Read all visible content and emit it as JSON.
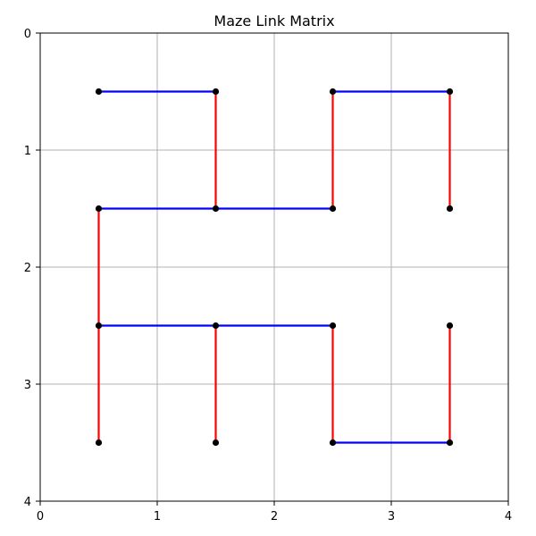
{
  "chart_data": {
    "type": "scatter",
    "title": "Maze Link Matrix",
    "xlabel": "",
    "ylabel": "",
    "xlim": [
      0,
      4
    ],
    "ylim": [
      4,
      0
    ],
    "y_inverted": true,
    "grid": true,
    "x_ticks": [
      "0",
      "1",
      "2",
      "3",
      "4"
    ],
    "y_ticks": [
      "0",
      "1",
      "2",
      "3",
      "4"
    ],
    "colors": {
      "horizontal_link": "#0000ff",
      "vertical_link": "#ff0000",
      "node": "#000000",
      "grid": "#b0b0b0"
    },
    "nodes": [
      {
        "x": 0.5,
        "y": 0.5
      },
      {
        "x": 1.5,
        "y": 0.5
      },
      {
        "x": 2.5,
        "y": 0.5
      },
      {
        "x": 3.5,
        "y": 0.5
      },
      {
        "x": 0.5,
        "y": 1.5
      },
      {
        "x": 1.5,
        "y": 1.5
      },
      {
        "x": 2.5,
        "y": 1.5
      },
      {
        "x": 3.5,
        "y": 1.5
      },
      {
        "x": 0.5,
        "y": 2.5
      },
      {
        "x": 1.5,
        "y": 2.5
      },
      {
        "x": 2.5,
        "y": 2.5
      },
      {
        "x": 3.5,
        "y": 2.5
      },
      {
        "x": 0.5,
        "y": 3.5
      },
      {
        "x": 1.5,
        "y": 3.5
      },
      {
        "x": 2.5,
        "y": 3.5
      },
      {
        "x": 3.5,
        "y": 3.5
      }
    ],
    "links": [
      {
        "orientation": "horizontal",
        "x1": 0.5,
        "y1": 0.5,
        "x2": 1.5,
        "y2": 0.5
      },
      {
        "orientation": "horizontal",
        "x1": 2.5,
        "y1": 0.5,
        "x2": 3.5,
        "y2": 0.5
      },
      {
        "orientation": "horizontal",
        "x1": 0.5,
        "y1": 1.5,
        "x2": 2.5,
        "y2": 1.5
      },
      {
        "orientation": "horizontal",
        "x1": 0.5,
        "y1": 2.5,
        "x2": 2.5,
        "y2": 2.5
      },
      {
        "orientation": "horizontal",
        "x1": 2.5,
        "y1": 3.5,
        "x2": 3.5,
        "y2": 3.5
      },
      {
        "orientation": "vertical",
        "x1": 1.5,
        "y1": 0.5,
        "x2": 1.5,
        "y2": 1.5
      },
      {
        "orientation": "vertical",
        "x1": 2.5,
        "y1": 0.5,
        "x2": 2.5,
        "y2": 1.5
      },
      {
        "orientation": "vertical",
        "x1": 3.5,
        "y1": 0.5,
        "x2": 3.5,
        "y2": 1.5
      },
      {
        "orientation": "vertical",
        "x1": 0.5,
        "y1": 1.5,
        "x2": 0.5,
        "y2": 3.5
      },
      {
        "orientation": "vertical",
        "x1": 1.5,
        "y1": 2.5,
        "x2": 1.5,
        "y2": 3.5
      },
      {
        "orientation": "vertical",
        "x1": 2.5,
        "y1": 2.5,
        "x2": 2.5,
        "y2": 3.5
      },
      {
        "orientation": "vertical",
        "x1": 3.5,
        "y1": 2.5,
        "x2": 3.5,
        "y2": 3.5
      }
    ]
  }
}
